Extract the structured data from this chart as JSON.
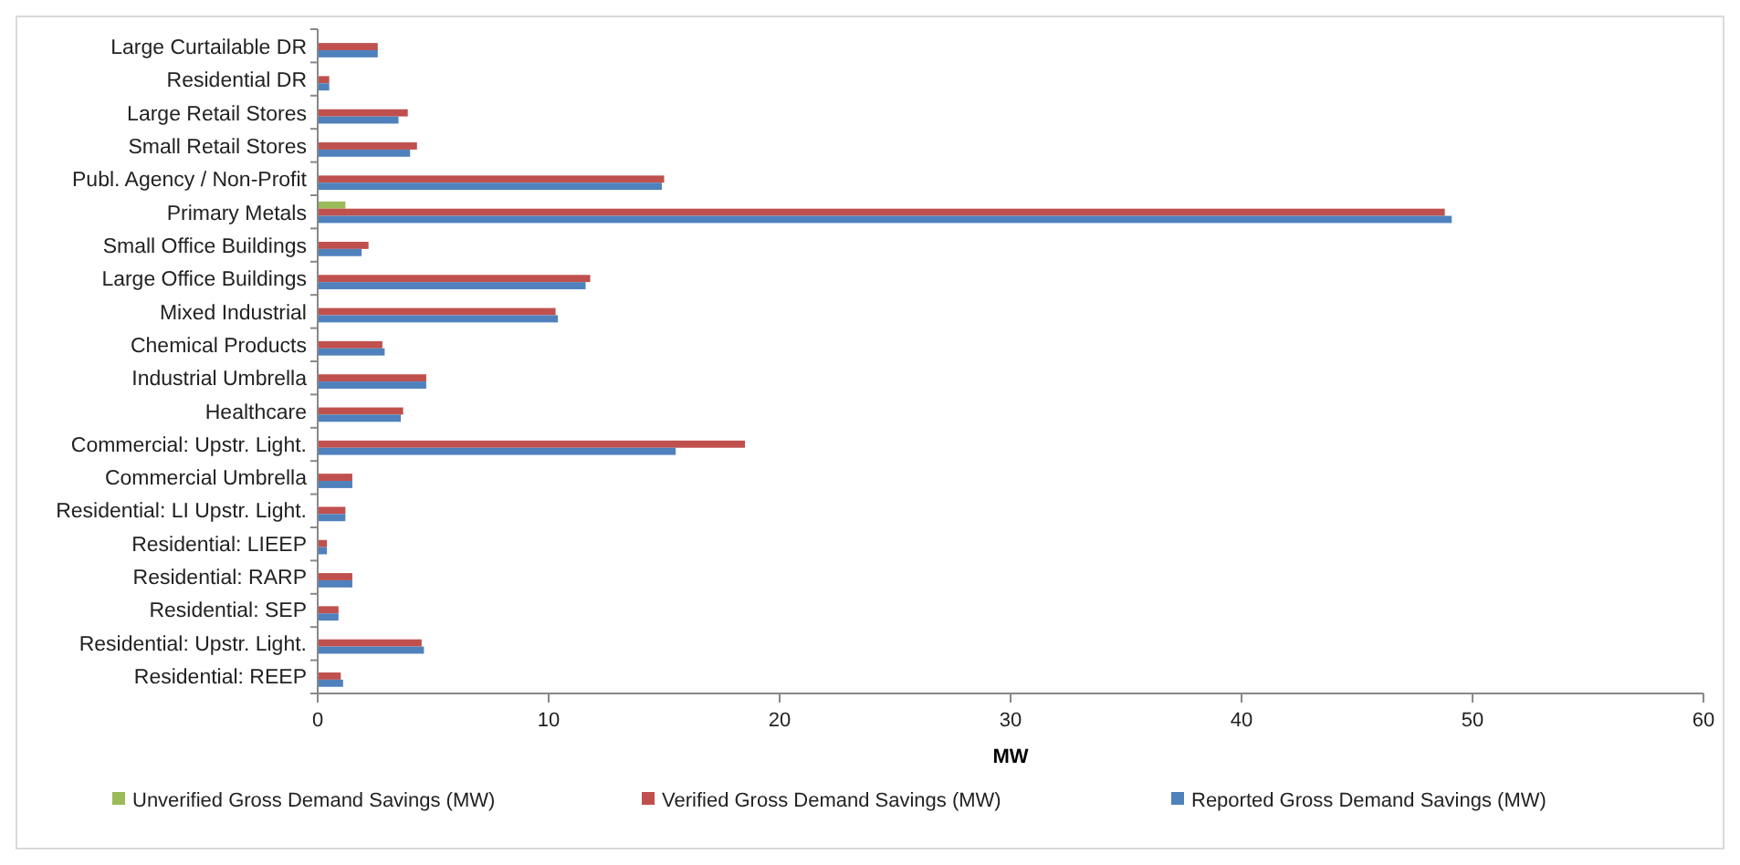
{
  "chart_data": {
    "type": "bar",
    "orientation": "horizontal",
    "xlabel": "MW",
    "categories": [
      "Large Curtailable DR",
      "Residential DR",
      "Large Retail Stores",
      "Small Retail Stores",
      "Publ. Agency / Non-Profit",
      "Primary Metals",
      "Small Office Buildings",
      "Large Office Buildings",
      "Mixed Industrial",
      "Chemical Products",
      "Industrial Umbrella",
      "Healthcare",
      "Commercial: Upstr. Light.",
      "Commercial Umbrella",
      "Residential: LI Upstr. Light.",
      "Residential: LIEEP",
      "Residential: RARP",
      "Residential: SEP",
      "Residential: Upstr. Light.",
      "Residential: REEP"
    ],
    "series": [
      {
        "name": "Unverified Gross Demand Savings (MW)",
        "color": "#9bbb59",
        "values": [
          null,
          null,
          null,
          null,
          null,
          1.2,
          null,
          null,
          null,
          null,
          null,
          null,
          null,
          null,
          null,
          null,
          null,
          null,
          null,
          null
        ]
      },
      {
        "name": "Verified Gross Demand Savings (MW)",
        "color": "#c0504d",
        "values": [
          2.6,
          0.5,
          3.9,
          4.3,
          15.0,
          48.8,
          2.2,
          11.8,
          10.3,
          2.8,
          4.7,
          3.7,
          18.5,
          1.5,
          1.2,
          0.4,
          1.5,
          0.9,
          4.5,
          1.0
        ]
      },
      {
        "name": "Reported Gross Demand Savings (MW)",
        "color": "#4f81bd",
        "values": [
          2.6,
          0.5,
          3.5,
          4.0,
          14.9,
          49.1,
          1.9,
          11.6,
          10.4,
          2.9,
          4.7,
          3.6,
          15.5,
          1.5,
          1.2,
          0.4,
          1.5,
          0.9,
          4.6,
          1.1
        ]
      }
    ],
    "xlim": [
      0,
      60
    ],
    "xticks": [
      0,
      10,
      20,
      30,
      40,
      50,
      60
    ],
    "grid": false,
    "legend": "bottom"
  }
}
